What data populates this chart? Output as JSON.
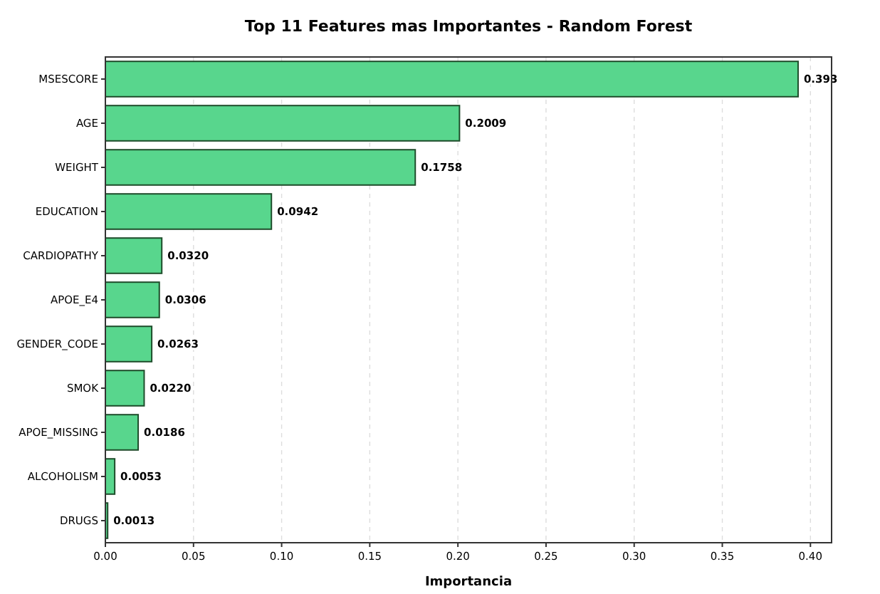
{
  "chart_data": {
    "type": "bar",
    "orientation": "horizontal",
    "title": "Top 11 Features mas Importantes - Random Forest",
    "xlabel": "Importancia",
    "categories": [
      "MSESCORE",
      "AGE",
      "WEIGHT",
      "EDUCATION",
      "CARDIOPATHY",
      "APOE_E4",
      "GENDER_CODE",
      "SMOK",
      "APOE_MISSING",
      "ALCOHOLISM",
      "DRUGS"
    ],
    "values": [
      0.393,
      0.2009,
      0.1758,
      0.0942,
      0.032,
      0.0306,
      0.0263,
      0.022,
      0.0186,
      0.0053,
      0.0013
    ],
    "value_labels": [
      "0.393",
      "0.2009",
      "0.1758",
      "0.0942",
      "0.0320",
      "0.0306",
      "0.0263",
      "0.0220",
      "0.0186",
      "0.0053",
      "0.0013"
    ],
    "color": "#58d68d",
    "xlim": [
      0,
      0.412
    ],
    "xticks": [
      {
        "value": 0,
        "label": "0.00"
      },
      {
        "value": 0.05,
        "label": "0.05"
      },
      {
        "value": 0.1,
        "label": "0.10"
      },
      {
        "value": 0.15,
        "label": "0.15"
      },
      {
        "value": 0.2,
        "label": "0.20"
      },
      {
        "value": 0.25,
        "label": "0.25"
      },
      {
        "value": 0.3,
        "label": "0.30"
      },
      {
        "value": 0.35,
        "label": "0.35"
      },
      {
        "value": 0.4,
        "label": "0.40"
      }
    ],
    "grid": "x"
  }
}
